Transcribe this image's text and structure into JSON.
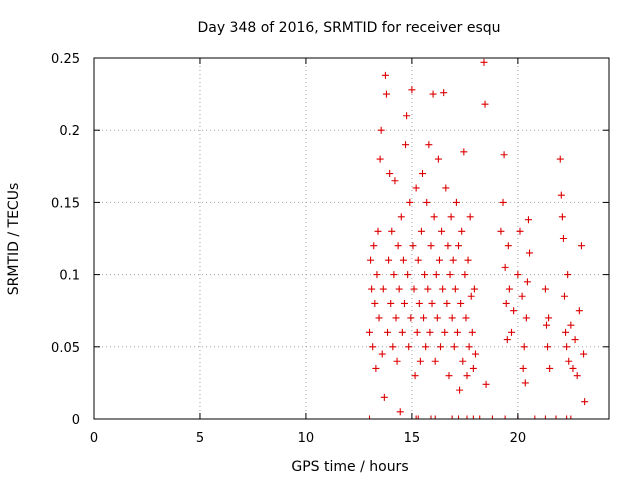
{
  "chart_data": {
    "type": "scatter",
    "title": "Day 348 of 2016, SRMTID for receiver esqu",
    "xlabel": "GPS time / hours",
    "ylabel": "SRMTID / TECUs",
    "xlim": [
      0,
      24.3
    ],
    "ylim": [
      0,
      0.25
    ],
    "xticks": [
      0,
      5,
      10,
      15,
      20
    ],
    "xtick_labels": [
      "0",
      "5",
      "10",
      "15",
      "20"
    ],
    "yticks": [
      0,
      0.05,
      0.1,
      0.15,
      0.2,
      0.25
    ],
    "ytick_labels": [
      "0",
      "0.05",
      "0.1",
      "0.15",
      "0.2",
      "0.25"
    ],
    "grid": true,
    "marker": "+",
    "color": "#dd0000",
    "series": [
      {
        "name": "SRMTID",
        "points": [
          [
            13.0,
            0.06
          ],
          [
            13.05,
            0.11
          ],
          [
            13.1,
            0.09
          ],
          [
            13.15,
            0.05
          ],
          [
            13.2,
            0.12
          ],
          [
            13.25,
            0.08
          ],
          [
            13.3,
            0.035
          ],
          [
            13.35,
            0.1
          ],
          [
            13.4,
            0.13
          ],
          [
            13.45,
            0.07
          ],
          [
            13.5,
            0.18
          ],
          [
            13.55,
            0.2
          ],
          [
            13.6,
            0.045
          ],
          [
            13.65,
            0.09
          ],
          [
            13.7,
            0.015
          ],
          [
            13.75,
            0.238
          ],
          [
            13.8,
            0.225
          ],
          [
            13.85,
            0.06
          ],
          [
            13.9,
            0.11
          ],
          [
            13.95,
            0.17
          ],
          [
            14.0,
            0.08
          ],
          [
            14.05,
            0.13
          ],
          [
            14.1,
            0.05
          ],
          [
            14.15,
            0.1
          ],
          [
            14.2,
            0.165
          ],
          [
            14.25,
            0.07
          ],
          [
            14.3,
            0.04
          ],
          [
            14.35,
            0.12
          ],
          [
            14.4,
            0.09
          ],
          [
            14.45,
            0.005
          ],
          [
            14.5,
            0.14
          ],
          [
            14.55,
            0.06
          ],
          [
            14.6,
            0.11
          ],
          [
            14.65,
            0.08
          ],
          [
            14.7,
            0.19
          ],
          [
            14.75,
            0.21
          ],
          [
            14.8,
            0.1
          ],
          [
            14.85,
            0.05
          ],
          [
            14.9,
            0.15
          ],
          [
            14.95,
            0.07
          ],
          [
            15.0,
            0.228
          ],
          [
            15.05,
            0.12
          ],
          [
            15.1,
            0.09
          ],
          [
            15.15,
            0.03
          ],
          [
            15.2,
            0.16
          ],
          [
            15.25,
            0.06
          ],
          [
            15.3,
            0.11
          ],
          [
            15.35,
            0.08
          ],
          [
            15.4,
            0.04
          ],
          [
            15.45,
            0.13
          ],
          [
            15.5,
            0.17
          ],
          [
            15.55,
            0.07
          ],
          [
            15.6,
            0.1
          ],
          [
            15.65,
            0.05
          ],
          [
            15.7,
            0.15
          ],
          [
            15.75,
            0.09
          ],
          [
            15.8,
            0.19
          ],
          [
            15.85,
            0.06
          ],
          [
            15.9,
            0.12
          ],
          [
            15.95,
            0.08
          ],
          [
            16.0,
            0.225
          ],
          [
            16.05,
            0.14
          ],
          [
            16.1,
            0.04
          ],
          [
            16.15,
            0.1
          ],
          [
            16.2,
            0.07
          ],
          [
            16.25,
            0.18
          ],
          [
            16.3,
            0.11
          ],
          [
            16.35,
            0.05
          ],
          [
            16.4,
            0.13
          ],
          [
            16.45,
            0.09
          ],
          [
            16.5,
            0.226
          ],
          [
            16.55,
            0.06
          ],
          [
            16.6,
            0.16
          ],
          [
            16.65,
            0.08
          ],
          [
            16.7,
            0.12
          ],
          [
            16.75,
            0.03
          ],
          [
            16.8,
            0.1
          ],
          [
            16.85,
            0.14
          ],
          [
            16.9,
            0.07
          ],
          [
            16.95,
            0.11
          ],
          [
            17.0,
            0.05
          ],
          [
            17.05,
            0.09
          ],
          [
            17.1,
            0.15
          ],
          [
            17.15,
            0.06
          ],
          [
            17.2,
            0.12
          ],
          [
            17.25,
            0.02
          ],
          [
            17.3,
            0.08
          ],
          [
            17.35,
            0.13
          ],
          [
            17.4,
            0.04
          ],
          [
            17.45,
            0.185
          ],
          [
            17.5,
            0.1
          ],
          [
            17.55,
            0.07
          ],
          [
            17.6,
            0.03
          ],
          [
            17.65,
            0.11
          ],
          [
            17.7,
            0.05
          ],
          [
            17.75,
            0.14
          ],
          [
            17.8,
            0.085
          ],
          [
            17.85,
            0.06
          ],
          [
            17.9,
            0.035
          ],
          [
            17.95,
            0.09
          ],
          [
            18.0,
            0.045
          ],
          [
            18.4,
            0.247
          ],
          [
            18.45,
            0.218
          ],
          [
            18.5,
            0.024
          ],
          [
            19.2,
            0.13
          ],
          [
            19.3,
            0.15
          ],
          [
            19.35,
            0.183
          ],
          [
            19.4,
            0.105
          ],
          [
            19.45,
            0.08
          ],
          [
            19.5,
            0.055
          ],
          [
            19.55,
            0.12
          ],
          [
            19.6,
            0.09
          ],
          [
            19.7,
            0.06
          ],
          [
            19.8,
            0.075
          ],
          [
            20.0,
            0.1
          ],
          [
            20.1,
            0.13
          ],
          [
            20.2,
            0.085
          ],
          [
            20.25,
            0.035
          ],
          [
            20.3,
            0.05
          ],
          [
            20.35,
            0.025
          ],
          [
            20.4,
            0.07
          ],
          [
            20.45,
            0.095
          ],
          [
            20.5,
            0.138
          ],
          [
            20.55,
            0.115
          ],
          [
            21.3,
            0.09
          ],
          [
            21.35,
            0.065
          ],
          [
            21.4,
            0.05
          ],
          [
            21.45,
            0.07
          ],
          [
            21.5,
            0.035
          ],
          [
            22.0,
            0.18
          ],
          [
            22.05,
            0.155
          ],
          [
            22.1,
            0.14
          ],
          [
            22.15,
            0.125
          ],
          [
            22.2,
            0.085
          ],
          [
            22.25,
            0.06
          ],
          [
            22.3,
            0.05
          ],
          [
            22.35,
            0.1
          ],
          [
            22.4,
            0.04
          ],
          [
            22.5,
            0.065
          ],
          [
            22.6,
            0.035
          ],
          [
            22.7,
            0.055
          ],
          [
            22.8,
            0.03
          ],
          [
            22.9,
            0.075
          ],
          [
            23.0,
            0.12
          ],
          [
            23.1,
            0.045
          ],
          [
            23.15,
            0.012
          ]
        ]
      }
    ],
    "zero_markers": {
      "name": "zero values",
      "x": [
        13.0,
        15.2,
        15.3,
        15.9,
        16.1,
        16.9,
        17.2,
        17.6,
        17.9,
        18.2,
        18.8,
        19.4,
        20.0,
        20.8,
        21.3,
        21.8,
        22.3,
        22.5
      ]
    }
  }
}
